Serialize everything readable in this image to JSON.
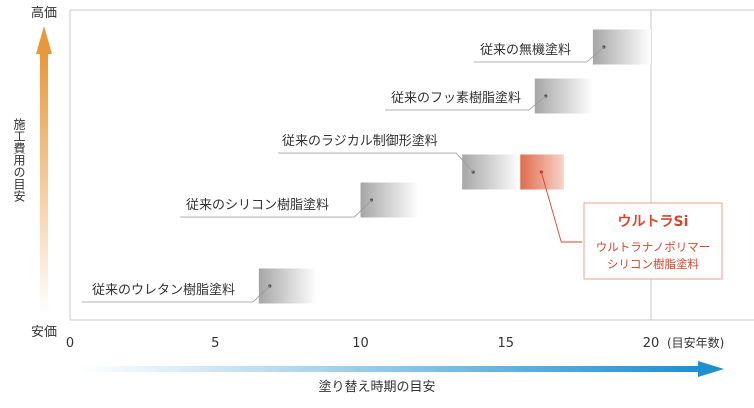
{
  "chart_data": {
    "type": "range-bar",
    "xlabel": "塗り替え時期の目安",
    "ylabel": "施工費用の目安",
    "y_high_label": "高価",
    "y_low_label": "安価",
    "x_unit": "(目安年数)",
    "xlim": [
      0,
      20
    ],
    "x_ticks": [
      "0",
      "5",
      "10",
      "15",
      "20"
    ],
    "grid": false,
    "series": [
      {
        "name": "従来のウレタン樹脂塗料",
        "range": [
          6.5,
          8.5
        ],
        "cost_rank": 1,
        "highlight": false
      },
      {
        "name": "従来のシリコン樹脂塗料",
        "range": [
          10.0,
          12.0
        ],
        "cost_rank": 2,
        "highlight": false
      },
      {
        "name": "従来のラジカル制御形塗料",
        "range": [
          13.5,
          15.5
        ],
        "cost_rank": 3,
        "highlight": false
      },
      {
        "name": "従来のフッ素樹脂塗料",
        "range": [
          16.0,
          18.0
        ],
        "cost_rank": 4,
        "highlight": false
      },
      {
        "name": "従来の無機塗料",
        "range": [
          18.0,
          20.0
        ],
        "cost_rank": 5,
        "highlight": false
      }
    ],
    "featured": {
      "title": "ウルトラSi",
      "line1": "ウルトラナノポリマー",
      "line2": "シリコン樹脂塗料",
      "range": [
        15.5,
        17.0
      ],
      "cost_rank": 3
    },
    "colors": {
      "bar_gray": "#a9a9a9",
      "bar_highlight": "#e0735a",
      "accent_red": "#d9452f",
      "y_arrow": "#e8973a",
      "x_arrow": "#1e8fcf",
      "frame": "#c8c8c8"
    }
  }
}
